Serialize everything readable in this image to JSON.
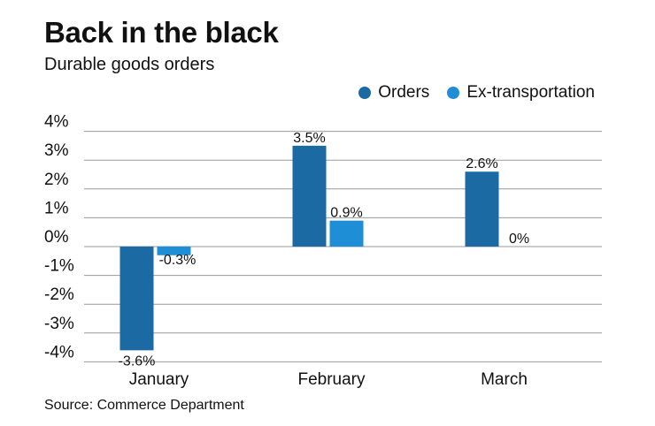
{
  "chart_data": {
    "type": "bar",
    "title": "Back in the black",
    "subtitle": "Durable goods orders",
    "categories": [
      "January",
      "February",
      "March"
    ],
    "series": [
      {
        "name": "Orders",
        "values": [
          -3.6,
          3.5,
          2.6
        ],
        "labels": [
          "-3.6%",
          "3.5%",
          "2.6%"
        ],
        "color": "#1c6aa3"
      },
      {
        "name": "Ex-transportation",
        "values": [
          -0.3,
          0.9,
          0
        ],
        "labels": [
          "-0.3%",
          "0.9%",
          "0%"
        ],
        "color": "#1e8ed6"
      }
    ],
    "yticks": [
      "4%",
      "3%",
      "2%",
      "1%",
      "0%",
      "-1%",
      "-2%",
      "-3%",
      "-4%"
    ],
    "ylim": [
      -4,
      4
    ],
    "grid": true,
    "legend": "top-right",
    "source": "Source: Commerce Department"
  }
}
